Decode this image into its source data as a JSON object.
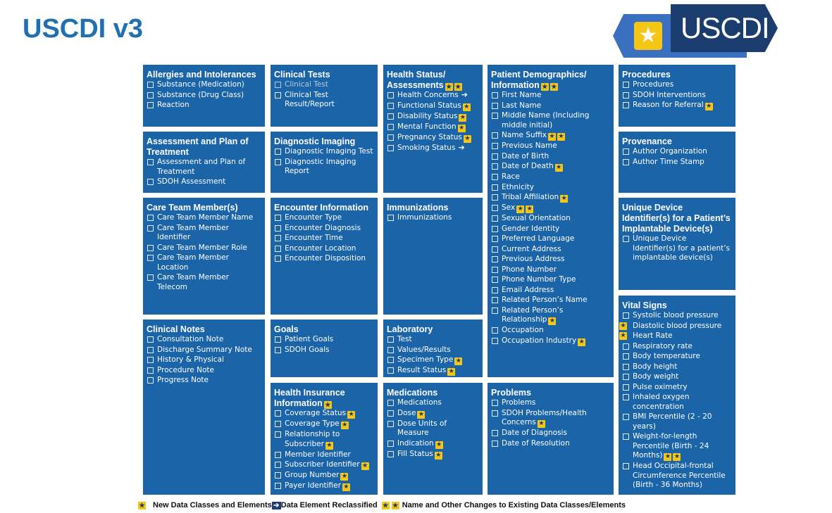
{
  "page": {
    "title": "USCDI v3"
  },
  "logo": {
    "text": "USCDI",
    "star": "★"
  },
  "icons": {
    "star": "★",
    "arrow": "➔",
    "star_color": "#f5c518",
    "box_color": "#1b64a8"
  },
  "col1": {
    "allergies": {
      "title": "Allergies and Intolerances",
      "items": [
        "Substance (Medication)",
        "Substance (Drug Class)",
        "Reaction"
      ]
    },
    "assessment": {
      "title": "Assessment and Plan of Treatment",
      "items": [
        "Assessment and Plan of Treatment",
        "SDOH Assessment"
      ]
    },
    "care_team": {
      "title": "Care Team Member(s)",
      "items": [
        "Care Team Member Name",
        "Care Team Member Identifier",
        "Care Team Member Role",
        "Care Team Member Location",
        "Care Team Member Telecom"
      ]
    },
    "clinical_notes": {
      "title": "Clinical Notes",
      "items": [
        "Consultation Note",
        "Discharge Summary Note",
        "History & Physical",
        "Procedure Note",
        "Progress Note"
      ]
    }
  },
  "col2": {
    "clinical_tests": {
      "title": "Clinical Tests",
      "items": [
        "Clinical Test",
        "Clinical Test Result/Report"
      ]
    },
    "diagnostic_imaging": {
      "title": "Diagnostic Imaging",
      "items": [
        "Diagnostic Imaging Test",
        "Diagnostic Imaging Report"
      ]
    },
    "encounter": {
      "title": "Encounter Information",
      "items": [
        "Encounter Type",
        "Encounter Diagnosis",
        "Encounter Time",
        "Encounter Location",
        "Encounter Disposition"
      ]
    },
    "goals": {
      "title": "Goals",
      "items": [
        "Patient Goals",
        "SDOH Goals"
      ]
    },
    "health_insurance": {
      "title": "Health Insurance Information",
      "items": [
        "Coverage Status",
        "Coverage Type",
        "Relationship to Subscriber",
        "Member Identifier",
        "Subscriber Identifier",
        "Group Number",
        "Payer Identifier"
      ]
    }
  },
  "col3": {
    "health_status": {
      "title": "Health Status/ Assessments",
      "items": [
        "Health Concerns",
        "Functional Status",
        "Disability Status",
        "Mental Function",
        "Pregnancy Status",
        "Smoking Status"
      ]
    },
    "immunizations": {
      "title": "Immunizations",
      "items": [
        "Immunizations"
      ]
    },
    "laboratory": {
      "title": "Laboratory",
      "items": [
        "Test",
        "Values/Results",
        "Specimen Type",
        "Result Status"
      ]
    },
    "medications": {
      "title": "Medications",
      "items": [
        "Medications",
        "Dose",
        "Dose Units of Measure",
        "Indication",
        "Fill Status"
      ]
    }
  },
  "col4": {
    "demographics": {
      "title": "Patient Demographics/ Information",
      "items": [
        "First Name",
        "Last Name",
        "Middle Name (Including middle initial)",
        "Name Suffix",
        "Previous Name",
        "Date of Birth",
        "Date of Death",
        "Race",
        "Ethnicity",
        "Tribal Affiliation",
        "Sex",
        "Sexual Orientation",
        "Gender Identity",
        "Preferred Language",
        "Current Address",
        "Previous Address",
        "Phone Number",
        "Phone Number Type",
        "Email Address",
        "Related Person’s Name",
        "Related Person’s Relationship",
        "Occupation",
        "Occupation Industry"
      ]
    },
    "problems": {
      "title": "Problems",
      "items": [
        "Problems",
        "SDOH Problems/Health Concerns",
        "Date of Diagnosis",
        "Date of Resolution"
      ]
    }
  },
  "col5": {
    "procedures": {
      "title": "Procedures",
      "items": [
        "Procedures",
        "SDOH Interventions",
        "Reason for Referral"
      ]
    },
    "provenance": {
      "title": "Provenance",
      "items": [
        "Author Organization",
        "Author Time Stamp"
      ]
    },
    "udi": {
      "title": "Unique Device Identifier(s) for a Patient’s Implantable Device(s)",
      "items": [
        "Unique Device Identifier(s) for a patient’s implantable device(s)"
      ]
    },
    "vital_signs": {
      "title": "Vital Signs",
      "items": [
        "Systolic blood pressure",
        "Diastolic blood pressure",
        "Heart Rate",
        "Respiratory rate",
        "Body temperature",
        "Body height",
        "Body weight",
        "Pulse oximetry",
        "Inhaled oxygen concentration",
        "BMI Percentile (2 - 20 years)",
        "Weight-for-length Percentile (Birth - 24 Months)",
        "Head Occipital-frontal Circumference Percentile (Birth - 36 Months)"
      ]
    }
  },
  "legend": {
    "new_label": "New Data Classes and Elements",
    "reclassified_label": "Data Element Reclassified",
    "changes_label": "Name and Other Changes to Existing Data Classes/Elements"
  }
}
